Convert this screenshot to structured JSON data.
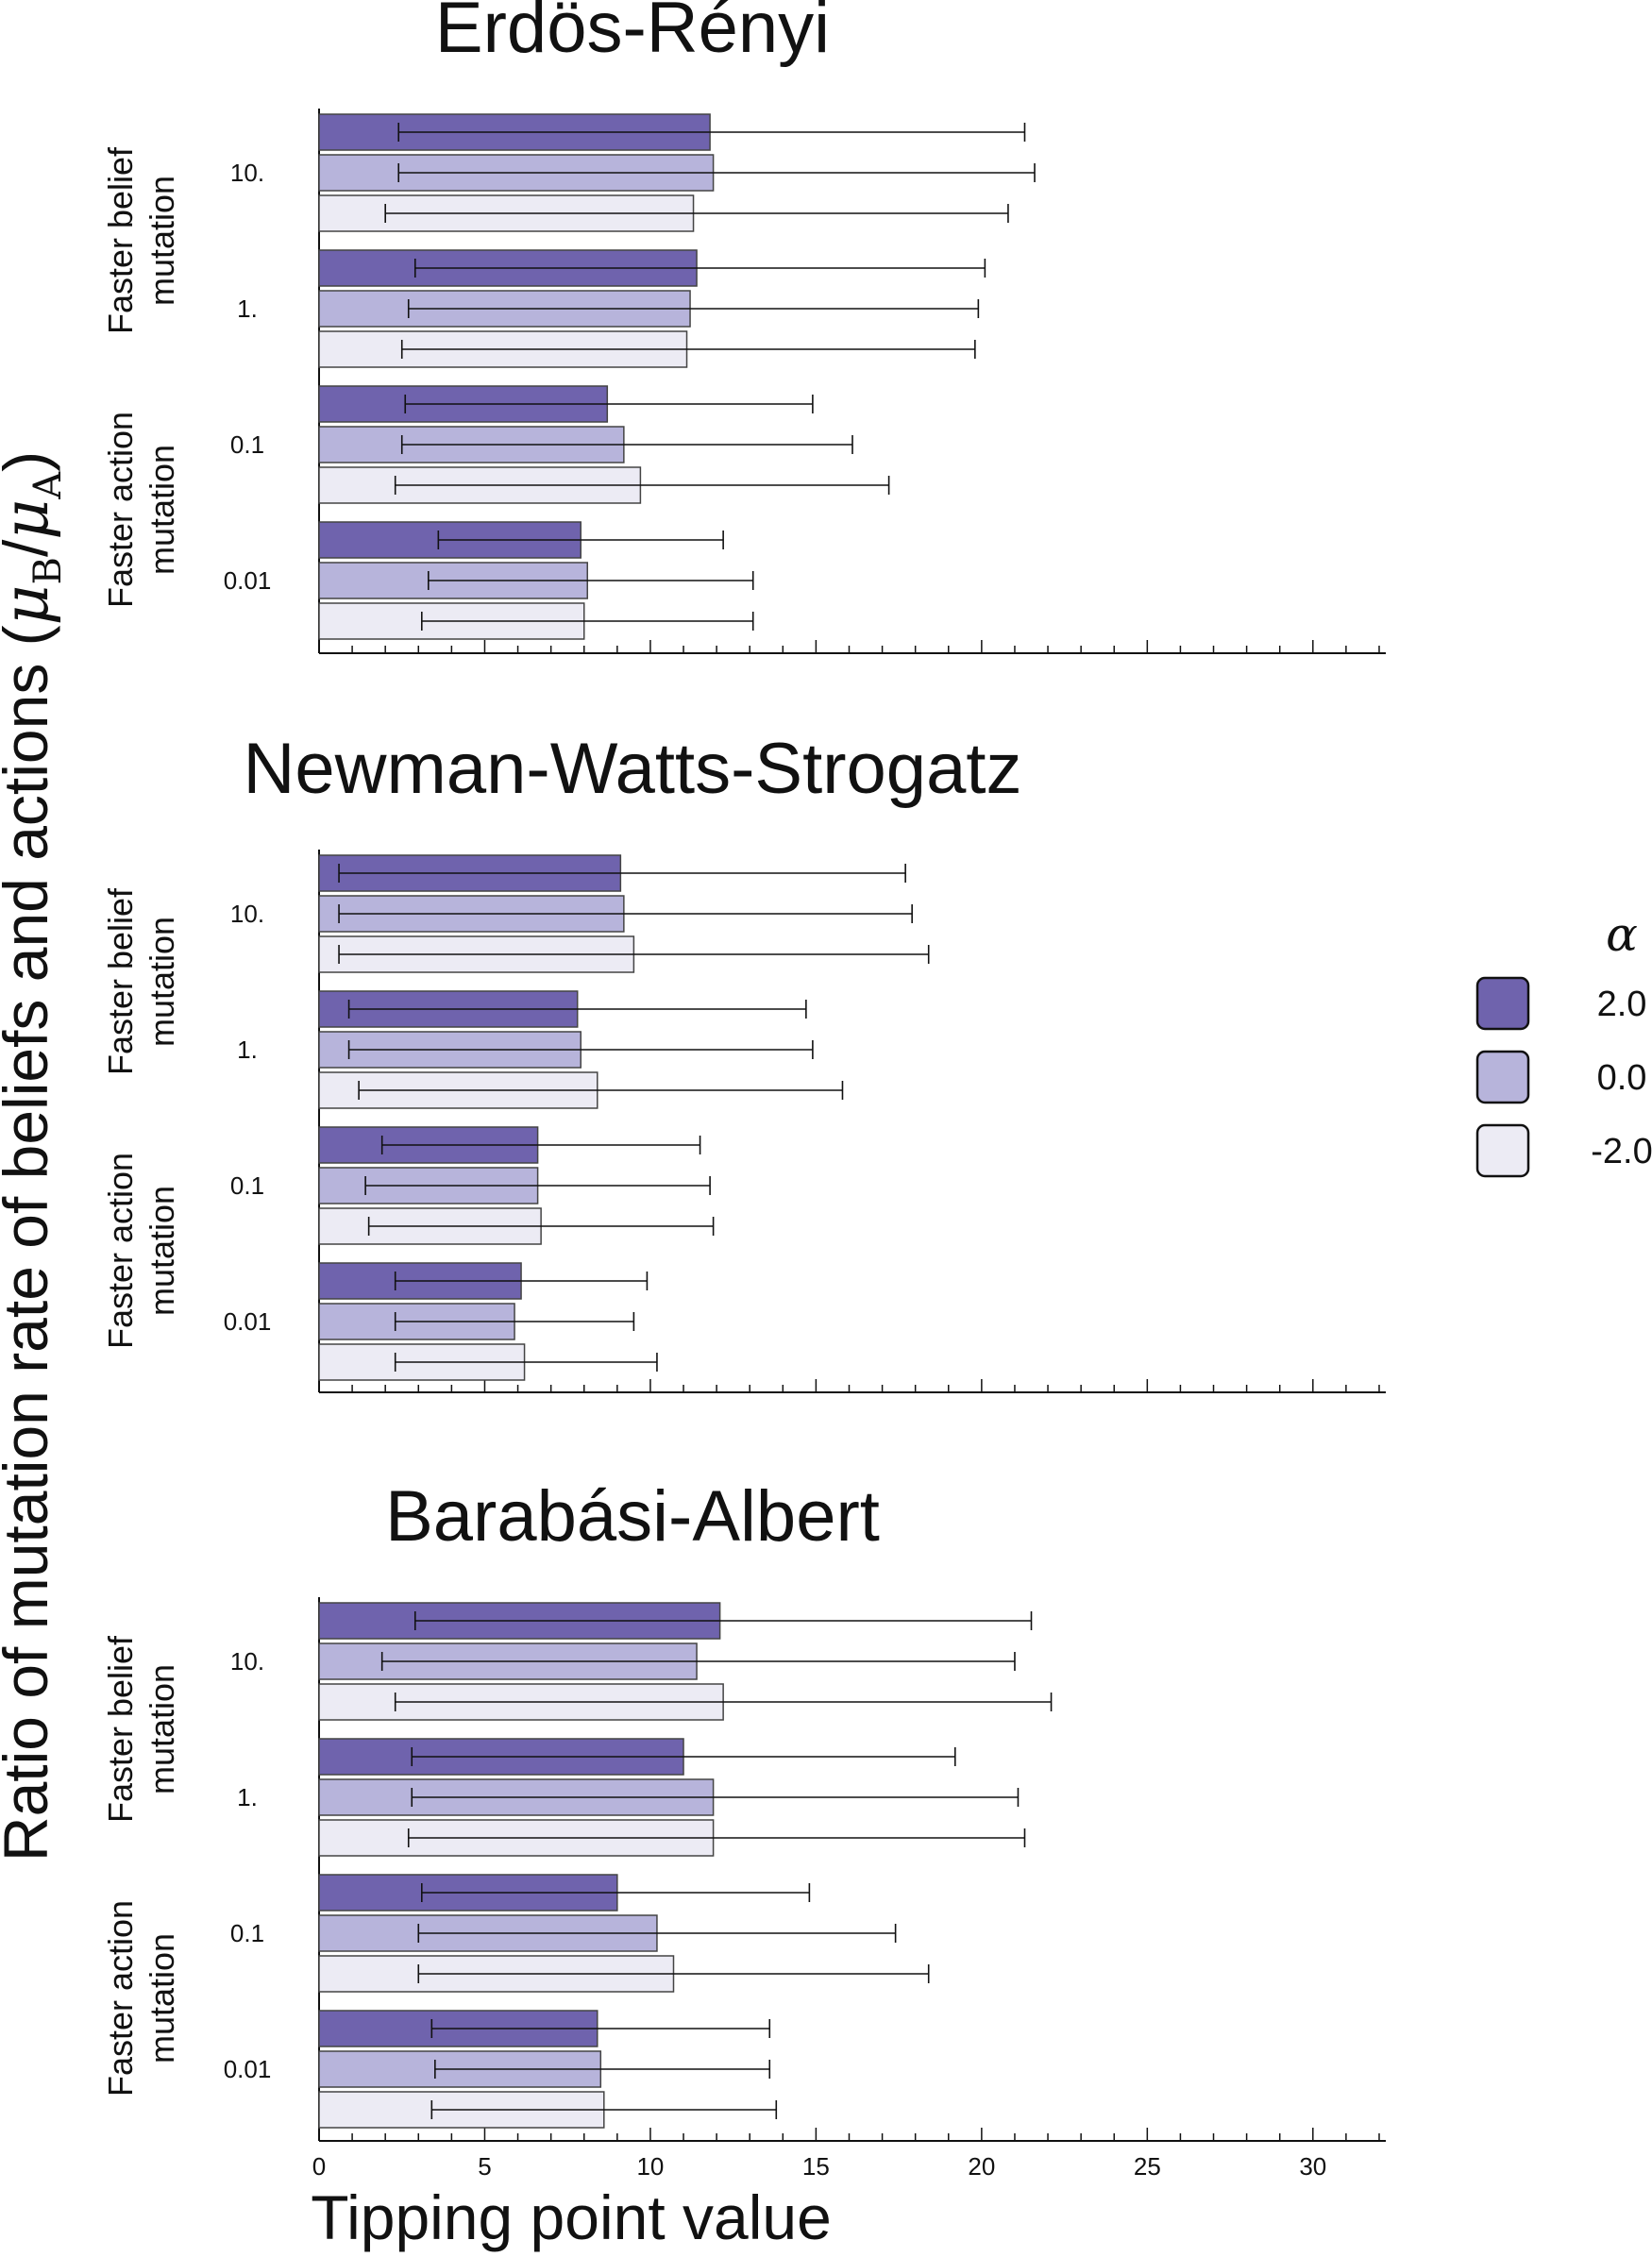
{
  "chart_data": {
    "type": "bar",
    "orientation": "horizontal",
    "ylabel_prefix": "Ratio of mutation rate of beliefs and actions (",
    "ylabel_math": {
      "mu": "μ",
      "B": "B",
      "A": "A",
      "slash": "/",
      "close": ")"
    },
    "xlabel": "Tipping point value",
    "x_ticks": [
      "0",
      "5",
      "10",
      "15",
      "20",
      "25",
      "30"
    ],
    "xlim": [
      0,
      32.2
    ],
    "categories": [
      "10.",
      "1.",
      "0.1",
      "0.01"
    ],
    "group_labels": {
      "faster_belief": [
        "Faster belief",
        "mutation"
      ],
      "faster_action": [
        "Faster action",
        "mutation"
      ]
    },
    "legend": {
      "title": "α",
      "entries": [
        {
          "label": "2.0",
          "color": "#6f63ad"
        },
        {
          "label": "0.0",
          "color": "#b7b4db"
        },
        {
          "label": "-2.0",
          "color": "#ecebf4"
        }
      ]
    },
    "panels": [
      {
        "title": "Erdös-Rényi",
        "series": [
          {
            "name": "2.0",
            "values": [
              11.8,
              11.4,
              8.7,
              7.9
            ],
            "err_low": [
              2.4,
              2.9,
              2.6,
              3.6
            ],
            "err_high": [
              21.3,
              20.1,
              14.9,
              12.2
            ]
          },
          {
            "name": "0.0",
            "values": [
              11.9,
              11.2,
              9.2,
              8.1
            ],
            "err_low": [
              2.4,
              2.7,
              2.5,
              3.3
            ],
            "err_high": [
              21.6,
              19.9,
              16.1,
              13.1
            ]
          },
          {
            "name": "-2.0",
            "values": [
              11.3,
              11.1,
              9.7,
              8.0
            ],
            "err_low": [
              2.0,
              2.5,
              2.3,
              3.1
            ],
            "err_high": [
              20.8,
              19.8,
              17.2,
              13.1
            ]
          }
        ]
      },
      {
        "title": "Newman-Watts-Strogatz",
        "series": [
          {
            "name": "2.0",
            "values": [
              9.1,
              7.8,
              6.6,
              6.1
            ],
            "err_low": [
              0.6,
              0.9,
              1.9,
              2.3
            ],
            "err_high": [
              17.7,
              14.7,
              11.5,
              9.9
            ]
          },
          {
            "name": "0.0",
            "values": [
              9.2,
              7.9,
              6.6,
              5.9
            ],
            "err_low": [
              0.6,
              0.9,
              1.4,
              2.3
            ],
            "err_high": [
              17.9,
              14.9,
              11.8,
              9.5
            ]
          },
          {
            "name": "-2.0",
            "values": [
              9.5,
              8.4,
              6.7,
              6.2
            ],
            "err_low": [
              0.6,
              1.2,
              1.5,
              2.3
            ],
            "err_high": [
              18.4,
              15.8,
              11.9,
              10.2
            ]
          }
        ]
      },
      {
        "title": "Barabási-Albert",
        "series": [
          {
            "name": "2.0",
            "values": [
              12.1,
              11.0,
              9.0,
              8.4
            ],
            "err_low": [
              2.9,
              2.8,
              3.1,
              3.4
            ],
            "err_high": [
              21.5,
              19.2,
              14.8,
              13.6
            ]
          },
          {
            "name": "0.0",
            "values": [
              11.4,
              11.9,
              10.2,
              8.5
            ],
            "err_low": [
              1.9,
              2.8,
              3.0,
              3.5
            ],
            "err_high": [
              21.0,
              21.1,
              17.4,
              13.6
            ]
          },
          {
            "name": "-2.0",
            "values": [
              12.2,
              11.9,
              10.7,
              8.6
            ],
            "err_low": [
              2.3,
              2.7,
              3.0,
              3.4
            ],
            "err_high": [
              22.1,
              21.3,
              18.4,
              13.8
            ]
          }
        ]
      }
    ]
  }
}
